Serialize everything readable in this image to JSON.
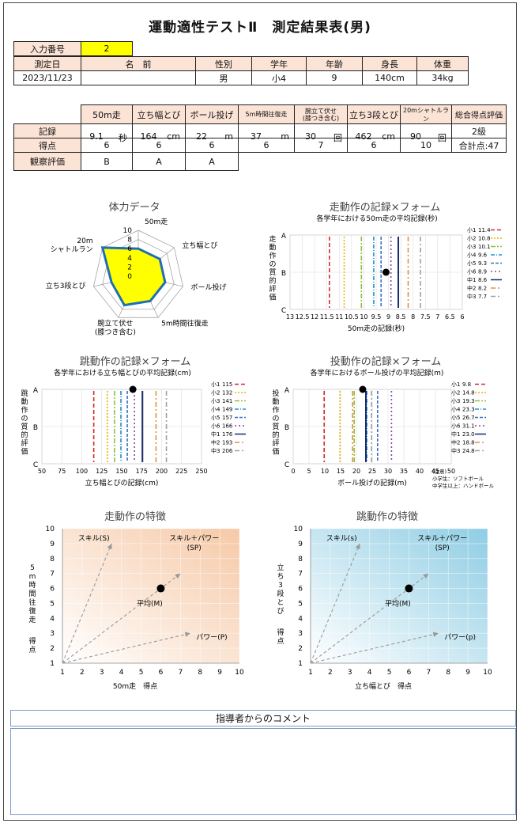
{
  "title": "運動適性テストⅡ　測定結果表(男)",
  "entry": {
    "label": "入力番号",
    "value": "2"
  },
  "profile": {
    "headers": [
      "測定日",
      "名　前",
      "性別",
      "学年",
      "年齢",
      "身長",
      "体重"
    ],
    "values": [
      "2023/11/23",
      "",
      "男",
      "小4",
      "9",
      "140cm",
      "34kg"
    ]
  },
  "results": {
    "headers": [
      "50m走",
      "立ち幅とび",
      "ボール投げ",
      "5m時間往復走",
      "腕立て伏せ\n(膝つき含む)",
      "立ち3段とび",
      "20mシャトルラン",
      "総合得点評価"
    ],
    "record_label": "記録",
    "records": [
      {
        "v": "9.1",
        "u": "秒"
      },
      {
        "v": "164",
        "u": "cm"
      },
      {
        "v": "22",
        "u": "m"
      },
      {
        "v": "37",
        "u": "m"
      },
      {
        "v": "30",
        "u": "回"
      },
      {
        "v": "462",
        "u": "cm"
      },
      {
        "v": "90",
        "u": "回"
      },
      {
        "v": "2級",
        "u": ""
      }
    ],
    "score_label": "得点",
    "scores": [
      "6",
      "6",
      "6",
      "6",
      "7",
      "6",
      "10",
      "合計点:47"
    ],
    "obs_label": "観察評価",
    "obs": [
      "B",
      "A",
      "A"
    ]
  },
  "chart_data": [
    {
      "type": "radar",
      "title": "体力データ",
      "axes": [
        "50m走",
        "立ち幅とび",
        "ボール投げ",
        "5m時間往復走",
        "腕立て伏せ\n(膝つき含む)",
        "立ち3段とび",
        "20m\nシャトルラン"
      ],
      "values": [
        6,
        6,
        6,
        6,
        7,
        6,
        10
      ],
      "range": [
        0,
        10
      ],
      "ticks": [
        "0",
        "2",
        "4",
        "6",
        "8",
        "10"
      ],
      "fill": "#ffff00",
      "stroke": "#1f6fb4"
    },
    {
      "type": "scatter",
      "title": "走動作の記録×フォーム",
      "subtitle": "各学年における50m走の平均記録(秒)",
      "xlabel": "50m走の記録(秒)",
      "ylabel": "走動作の質的評価",
      "xlim": [
        13,
        6
      ],
      "xticks": [
        "13",
        "12.5",
        "12",
        "11.5",
        "11",
        "10.5",
        "10",
        "9.5",
        "9",
        "8.5",
        "8",
        "7.5",
        "7",
        "6.5",
        "6"
      ],
      "yticks": [
        "A",
        "B",
        "C"
      ],
      "point": {
        "x": 9.1,
        "y": "B"
      },
      "legend": [
        {
          "name": "小1",
          "value": "11.4",
          "color": "#d62a2a"
        },
        {
          "name": "小2",
          "value": "10.8",
          "color": "#e8b400"
        },
        {
          "name": "小3",
          "value": "10.1",
          "color": "#8dc03c"
        },
        {
          "name": "小4",
          "value": "9.6",
          "color": "#1e90d6"
        },
        {
          "name": "小5",
          "value": "9.3",
          "color": "#3c6fc4"
        },
        {
          "name": "小6",
          "value": "8.9",
          "color": "#7f4aa8"
        },
        {
          "name": "中1",
          "value": "8.6",
          "color": "#1a2a6c"
        },
        {
          "name": "中2",
          "value": "8.2",
          "color": "#e3913a"
        },
        {
          "name": "中3",
          "value": "7.7",
          "color": "#9aa0a6"
        }
      ]
    },
    {
      "type": "scatter",
      "title": "跳動作の記録×フォーム",
      "subtitle": "各学年における立ち幅とびの平均記録(cm)",
      "xlabel": "立ち幅とびの記録(cm)",
      "ylabel": "跳動作の質的評価",
      "xlim": [
        50,
        250
      ],
      "xticks": [
        "50",
        "75",
        "100",
        "125",
        "150",
        "175",
        "200",
        "225",
        "250"
      ],
      "yticks": [
        "A",
        "B",
        "C"
      ],
      "point": {
        "x": 164,
        "y": "A"
      },
      "legend": [
        {
          "name": "小1",
          "value": "115",
          "color": "#d62a2a"
        },
        {
          "name": "小2",
          "value": "132",
          "color": "#e8b400"
        },
        {
          "name": "小3",
          "value": "141",
          "color": "#8dc03c"
        },
        {
          "name": "小4",
          "value": "149",
          "color": "#1e90d6"
        },
        {
          "name": "小5",
          "value": "157",
          "color": "#3c6fc4"
        },
        {
          "name": "小6",
          "value": "166",
          "color": "#7f4aa8"
        },
        {
          "name": "中1",
          "value": "176",
          "color": "#1a2a6c"
        },
        {
          "name": "中2",
          "value": "193",
          "color": "#e3913a"
        },
        {
          "name": "中3",
          "value": "206",
          "color": "#9aa0a6"
        }
      ]
    },
    {
      "type": "scatter",
      "title": "投動作の記録×フォーム",
      "subtitle": "各学年におけるボール投げの平均記録(m)",
      "xlabel": "ボール投げの記録(m)",
      "ylabel": "投動作の質的評価",
      "xlim": [
        0,
        50
      ],
      "xticks": [
        "0",
        "5",
        "10",
        "15",
        "20",
        "25",
        "30",
        "35",
        "40",
        "45",
        "50"
      ],
      "yticks": [
        "A",
        "B",
        "C"
      ],
      "point": {
        "x": 22,
        "y": "A"
      },
      "legend": [
        {
          "name": "小1",
          "value": "9.8",
          "color": "#d62a2a"
        },
        {
          "name": "小2",
          "value": "14.8",
          "color": "#e8b400"
        },
        {
          "name": "小3",
          "value": "19.3",
          "color": "#8dc03c"
        },
        {
          "name": "小4",
          "value": "23.3",
          "color": "#1e90d6"
        },
        {
          "name": "小5",
          "value": "26.7",
          "color": "#3c6fc4"
        },
        {
          "name": "小6",
          "value": "31.1",
          "color": "#7f4aa8"
        },
        {
          "name": "中1",
          "value": "23.0",
          "color": "#1a2a6c"
        },
        {
          "name": "中2",
          "value": "18.8",
          "color": "#e3913a"
        },
        {
          "name": "中3",
          "value": "24.8",
          "color": "#9aa0a6"
        }
      ],
      "note": [
        "(注意)",
        "小学生：ソフトボール",
        "中学生以上：ハンドボール"
      ]
    },
    {
      "type": "scatter",
      "title": "走動作の特徴",
      "xlabel": "50m走　得点",
      "ylabel": "5m時間往復走　得点",
      "xlim": [
        1,
        10
      ],
      "ylim": [
        1,
        10
      ],
      "point": {
        "x": 6,
        "y": 6,
        "label": "平均(M)"
      },
      "labels": {
        "s": "スキル(S)",
        "sp": "スキル＋パワー\n(SP)",
        "p": "パワー(P)"
      },
      "gradient": "#f6c9a7"
    },
    {
      "type": "scatter",
      "title": "跳動作の特徴",
      "xlabel": "立ち幅とび　得点",
      "ylabel": "立ち3段とび　得点",
      "xlim": [
        1,
        10
      ],
      "ylim": [
        1,
        10
      ],
      "point": {
        "x": 6,
        "y": 6,
        "label": "平均(M)"
      },
      "labels": {
        "s": "スキル(s)",
        "sp": "スキル＋パワー\n(SP)",
        "p": "パワー(p)"
      },
      "gradient": "#8fcde4"
    }
  ],
  "comment": {
    "title": "指導者からのコメント"
  }
}
